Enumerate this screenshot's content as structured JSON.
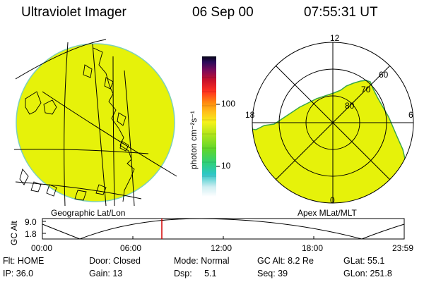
{
  "header": {
    "instrument": "Ultraviolet Imager",
    "date": "06 Sep 00",
    "time": "07:55:31 UT"
  },
  "colorbar": {
    "unit_label": "photon cm⁻²s⁻¹",
    "ticks": [
      "100",
      "10"
    ]
  },
  "left_panel": {
    "caption": "Geographic Lat/Lon"
  },
  "right_panel": {
    "caption": "Apex MLat/MLT",
    "mlt_labels": {
      "top": "12",
      "bottom": "0",
      "left": "18",
      "right": "6"
    },
    "lat_labels": [
      "60",
      "70",
      "80"
    ]
  },
  "orbit_plot": {
    "ylabel": "GC Alt",
    "y_ticks": [
      "9.0",
      "1.8"
    ],
    "x_ticks": [
      "00:00",
      "06:00",
      "12:00",
      "18:00",
      "23:59"
    ],
    "marker_time_hours": 7.93
  },
  "status": {
    "row1": {
      "flt": "Flt: HOME",
      "door": "Door: Closed",
      "mode": "Mode: Normal",
      "gc_alt": "GC Alt: 8.2 Re",
      "glat": "GLat:  55.1"
    },
    "row2": {
      "ip": "IP: 36.0",
      "gain": "Gain: 13",
      "dsp": "Dsp:     5.1",
      "seq": "Seq: 39",
      "glon": "GLon: 251.8"
    }
  },
  "colors": {
    "image_fill": "#e6f20a",
    "limb_edge": "#7ed0b8",
    "marker": "#d40000"
  }
}
